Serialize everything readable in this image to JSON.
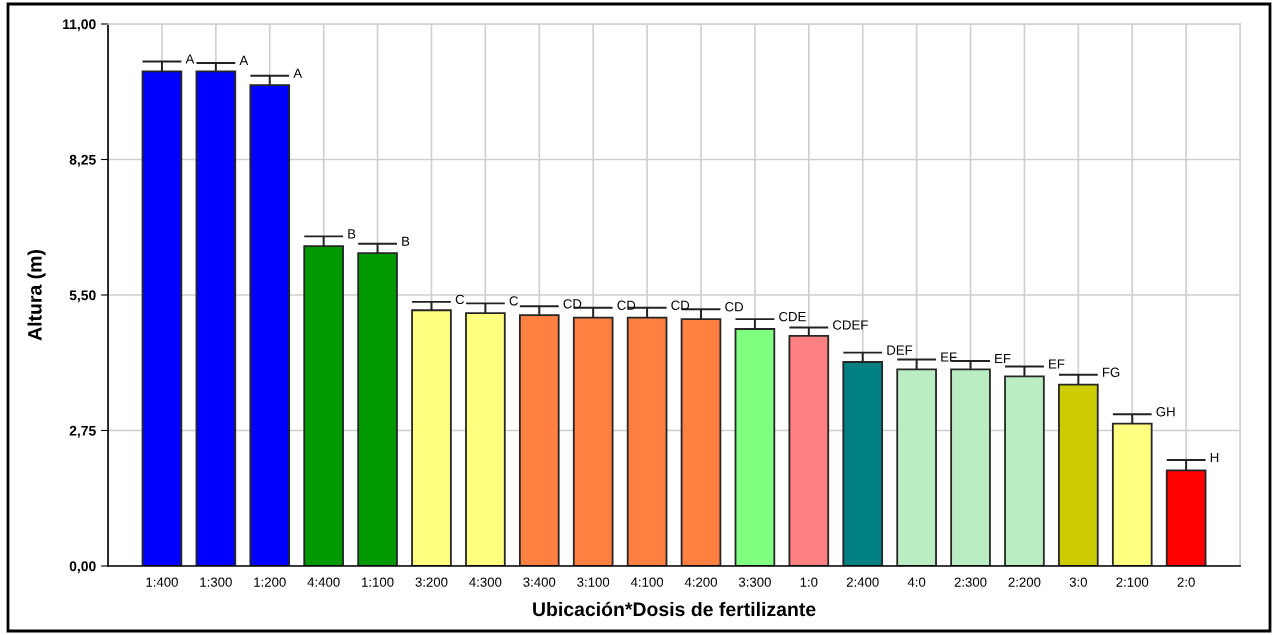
{
  "chart_data": {
    "type": "bar",
    "xlabel": "Ubicación*Dosis de fertilizante",
    "ylabel": "Altura (m)",
    "categories": [
      "1:400",
      "1:300",
      "1:200",
      "4:400",
      "1:100",
      "3:200",
      "4:300",
      "3:400",
      "3:100",
      "4:100",
      "4:200",
      "3:300",
      "1:0",
      "2:400",
      "4:0",
      "2:300",
      "2:200",
      "3:0",
      "2:100",
      "2:0"
    ],
    "values": [
      10.04,
      10.04,
      9.76,
      6.49,
      6.35,
      5.19,
      5.13,
      5.09,
      5.04,
      5.04,
      5.01,
      4.81,
      4.67,
      4.14,
      3.99,
      3.99,
      3.85,
      3.68,
      2.89,
      1.94
    ],
    "errors": [
      [
        10.04,
        10.24
      ],
      [
        10.04,
        10.21
      ],
      [
        9.76,
        9.95
      ],
      [
        6.49,
        6.69
      ],
      [
        6.35,
        6.54
      ],
      [
        5.19,
        5.36
      ],
      [
        5.13,
        5.33
      ],
      [
        5.09,
        5.27
      ],
      [
        5.04,
        5.24
      ],
      [
        5.04,
        5.24
      ],
      [
        5.01,
        5.21
      ],
      [
        4.81,
        5.01
      ],
      [
        4.67,
        4.84
      ],
      [
        4.14,
        4.33
      ],
      [
        3.99,
        4.19
      ],
      [
        3.99,
        4.16
      ],
      [
        3.85,
        4.05
      ],
      [
        3.68,
        3.88
      ],
      [
        2.89,
        3.08
      ],
      [
        1.94,
        2.15
      ]
    ],
    "colors": [
      "#0000ff",
      "#0000ff",
      "#0000ff",
      "#009900",
      "#009900",
      "#ffff80",
      "#ffff80",
      "#ff8040",
      "#ff8040",
      "#ff8040",
      "#ff8040",
      "#80ff80",
      "#ff8080",
      "#008080",
      "#bbedc2",
      "#bbedc2",
      "#bbedc2",
      "#cccc00",
      "#ffff80",
      "#ff0000"
    ],
    "ylim": [
      0,
      11
    ],
    "yticks": [
      {
        "value": 0,
        "label": "0,00"
      },
      {
        "value": 2.75,
        "label": "2,75"
      },
      {
        "value": 5.5,
        "label": "5,50"
      },
      {
        "value": 8.25,
        "label": "8,25"
      },
      {
        "value": 11,
        "label": "11,00"
      }
    ],
    "grid": true,
    "annotations": [
      {
        "text": "A",
        "x": "1:400",
        "y": 10.24
      },
      {
        "text": "A",
        "x": "1:300",
        "y": 10.21
      },
      {
        "text": "A",
        "x": "1:200",
        "y": 9.95
      },
      {
        "text": "B",
        "x": "4:400",
        "y": 6.69
      },
      {
        "text": "B",
        "x": "1:100",
        "y": 6.54
      },
      {
        "text": "C",
        "x": "3:200",
        "y": 5.36
      },
      {
        "text": "C",
        "x": "4:300",
        "y": 5.33
      },
      {
        "text": "CD",
        "x": "3:400",
        "y": 5.27
      },
      {
        "text": "CD",
        "x": "3:100",
        "y": 5.24
      },
      {
        "text": "CD",
        "x": "4:100",
        "y": 5.24
      },
      {
        "text": "CD",
        "x": "4:200",
        "y": 5.21
      },
      {
        "text": "CDE",
        "x": "3:300",
        "y": 5.01
      },
      {
        "text": "CDEF",
        "x": "1:0",
        "y": 4.84
      },
      {
        "text": "DEF",
        "x": "2:400",
        "y": 4.33
      },
      {
        "text": "EF",
        "x": "4:0",
        "y": 4.19
      },
      {
        "text": "EF",
        "x": "2:300",
        "y": 4.16
      },
      {
        "text": "EF",
        "x": "2:200",
        "y": 4.05
      },
      {
        "text": "FG",
        "x": "3:0",
        "y": 3.88
      },
      {
        "text": "GH",
        "x": "2:100",
        "y": 3.08
      },
      {
        "text": "H",
        "x": "2:0",
        "y": 2.15
      }
    ]
  }
}
